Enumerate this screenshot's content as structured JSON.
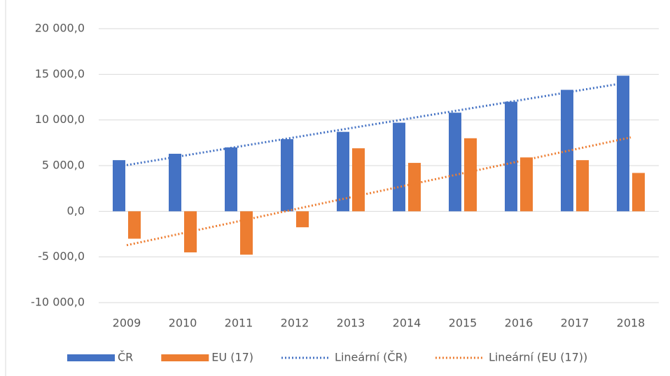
{
  "chart_data": {
    "type": "bar",
    "categories": [
      "2009",
      "2010",
      "2011",
      "2012",
      "2013",
      "2014",
      "2015",
      "2016",
      "2017",
      "2018"
    ],
    "series": [
      {
        "name": "ČR",
        "color": "#4472c4",
        "values": [
          5600,
          6300,
          7000,
          7900,
          8700,
          9700,
          10800,
          12000,
          13300,
          14850
        ],
        "trendline": {
          "name": "Lineární (ČR)",
          "color": "#4472c4"
        }
      },
      {
        "name": "EU (17)",
        "color": "#ed7d31",
        "values": [
          -3000,
          -4500,
          -4750,
          -1750,
          6900,
          5300,
          8000,
          5900,
          5600,
          4200
        ],
        "trendline": {
          "name": "Lineární (EU (17))",
          "color": "#ed7d31"
        }
      }
    ],
    "ylim": [
      -10000,
      20000
    ],
    "yticks": [
      {
        "value": -10000,
        "label": "-10 000,0"
      },
      {
        "value": -5000,
        "label": "-5 000,0"
      },
      {
        "value": 0,
        "label": "0,0"
      },
      {
        "value": 5000,
        "label": "5 000,0"
      },
      {
        "value": 10000,
        "label": "10 000,0"
      },
      {
        "value": 15000,
        "label": "15 000,0"
      },
      {
        "value": 20000,
        "label": "20 000,0"
      }
    ],
    "grid": true,
    "legend": "bottom"
  }
}
